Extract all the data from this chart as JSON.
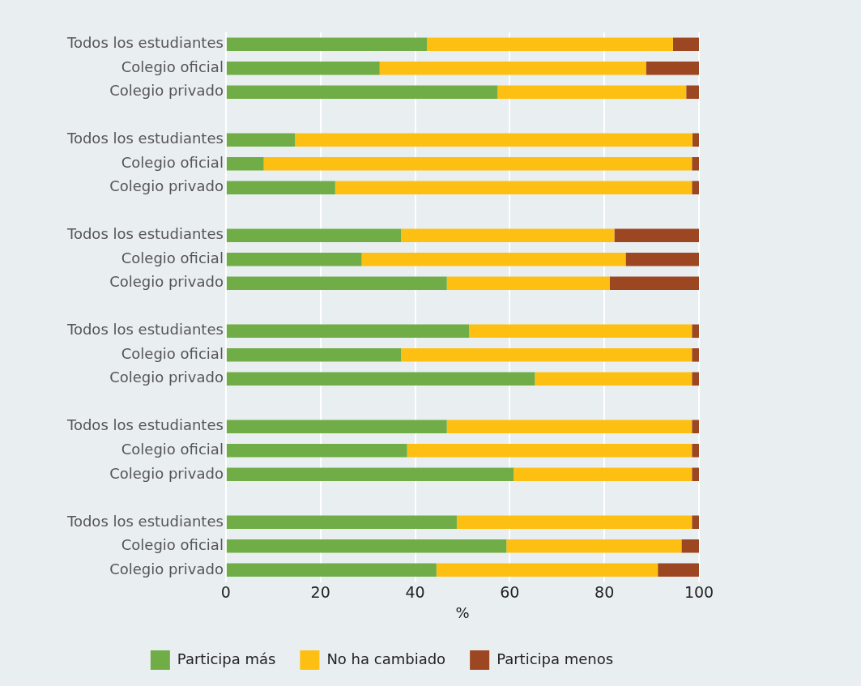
{
  "chart_data": {
    "type": "bar",
    "orientation": "horizontal",
    "stacked": true,
    "categories": [
      "Todos los estudiantes",
      "Colegio oficial",
      "Colegio privado",
      null,
      "Todos los estudiantes",
      "Colegio oficial",
      "Colegio privado",
      null,
      "Todos los estudiantes",
      "Colegio oficial",
      "Colegio privado",
      null,
      "Todos los estudiantes",
      "Colegio oficial",
      "Colegio privado",
      null,
      "Todos los estudiantes",
      "Colegio oficial",
      "Colegio privado",
      null,
      "Todos los estudiantes",
      "Colegio oficial",
      "Colegio privado"
    ],
    "series": [
      {
        "name": "Participa más",
        "color": "#70ad47",
        "values": [
          42.5,
          32.5,
          57.4,
          null,
          14.6,
          8,
          23.1,
          null,
          37,
          28.7,
          46.7,
          null,
          51.4,
          37,
          65.3,
          null,
          46.7,
          38.3,
          60.8,
          null,
          48.8,
          59.3,
          44.5
        ]
      },
      {
        "name": "No ha cambiado",
        "color": "#fdbf12",
        "values": [
          52,
          56.3,
          39.9,
          null,
          84,
          90.5,
          75.4,
          null,
          45.1,
          55.8,
          34.4,
          null,
          47.1,
          61.5,
          33.2,
          null,
          51.8,
          60.2,
          37.7,
          null,
          49.7,
          37,
          46.8
        ]
      },
      {
        "name": "Participa menos",
        "color": "#9c4622",
        "values": [
          5.5,
          11.2,
          2.7,
          null,
          1.4,
          1.5,
          1.5,
          null,
          17.9,
          15.5,
          18.9,
          null,
          1.5,
          1.5,
          1.5,
          null,
          1.5,
          1.5,
          1.5,
          null,
          1.5,
          3.7,
          8.7
        ]
      }
    ],
    "xlabel": "%",
    "xlim": [
      0,
      100
    ],
    "xticks": [
      0,
      20,
      40,
      60,
      80,
      100
    ],
    "grid": "x",
    "legend": "bottom"
  }
}
